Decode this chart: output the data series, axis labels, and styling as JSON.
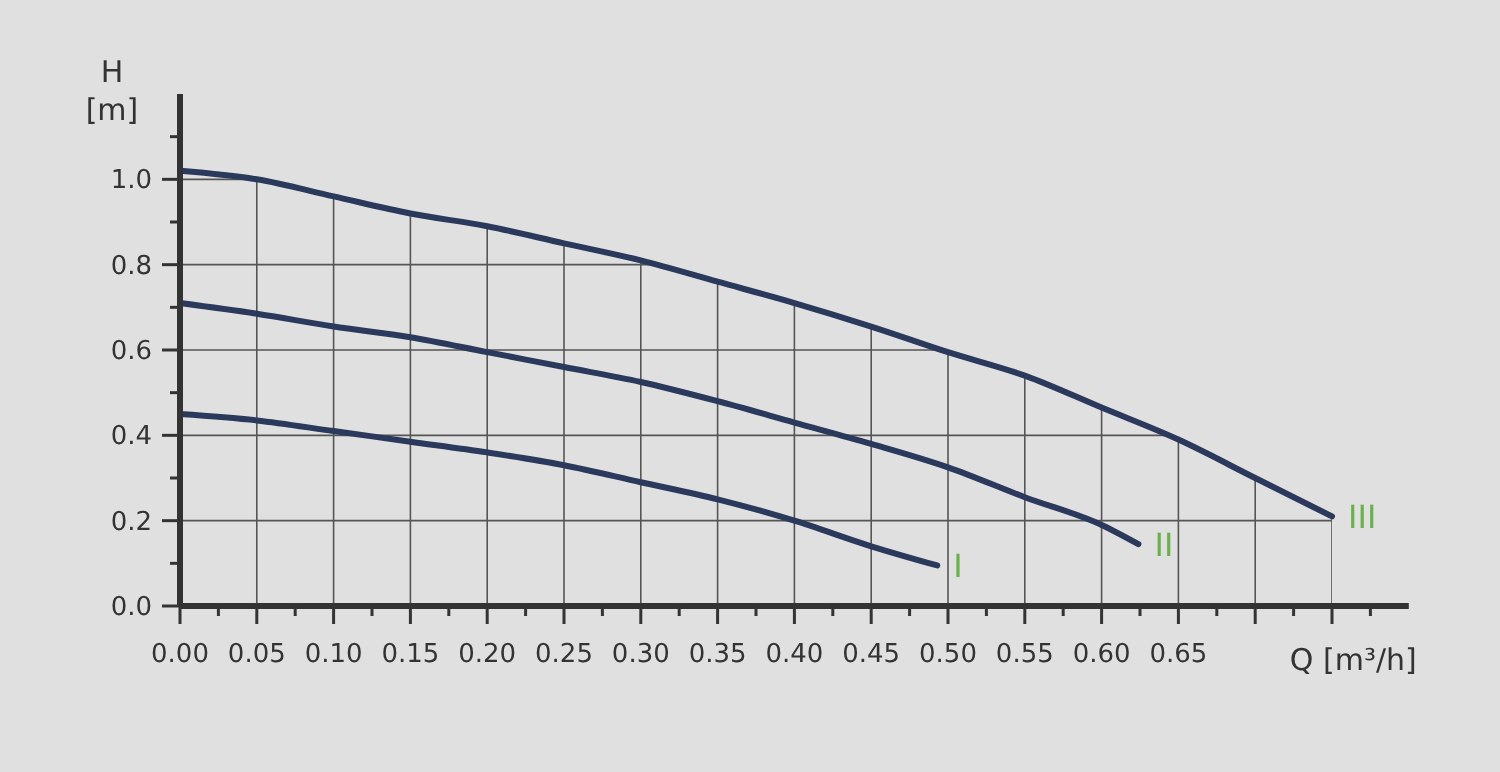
{
  "chart_data": {
    "type": "line",
    "xlabel": "Q [m³/h]",
    "ylabel": "H [m]",
    "xlim": [
      0,
      0.8
    ],
    "ylim": [
      0,
      1.2
    ],
    "xticks": [
      {
        "value": 0,
        "label": "0.00"
      },
      {
        "value": 0.025,
        "label": null
      },
      {
        "value": 0.05,
        "label": "0.05"
      },
      {
        "value": 0.075,
        "label": null
      },
      {
        "value": 0.1,
        "label": "0.10"
      },
      {
        "value": 0.125,
        "label": null
      },
      {
        "value": 0.15,
        "label": "0.15"
      },
      {
        "value": 0.175,
        "label": null
      },
      {
        "value": 0.2,
        "label": "0.20"
      },
      {
        "value": 0.225,
        "label": null
      },
      {
        "value": 0.25,
        "label": "0.25"
      },
      {
        "value": 0.275,
        "label": null
      },
      {
        "value": 0.3,
        "label": "0.30"
      },
      {
        "value": 0.325,
        "label": null
      },
      {
        "value": 0.35,
        "label": "0.35"
      },
      {
        "value": 0.375,
        "label": null
      },
      {
        "value": 0.4,
        "label": "0.40"
      },
      {
        "value": 0.425,
        "label": null
      },
      {
        "value": 0.45,
        "label": "0.45"
      },
      {
        "value": 0.475,
        "label": null
      },
      {
        "value": 0.5,
        "label": "0.50"
      },
      {
        "value": 0.525,
        "label": null
      },
      {
        "value": 0.55,
        "label": "0.55"
      },
      {
        "value": 0.575,
        "label": null
      },
      {
        "value": 0.6,
        "label": "0.60"
      },
      {
        "value": 0.625,
        "label": null
      },
      {
        "value": 0.65,
        "label": "0.65"
      },
      {
        "value": 0.675,
        "label": null
      },
      {
        "value": 0.7,
        "label": null
      },
      {
        "value": 0.725,
        "label": null
      },
      {
        "value": 0.75,
        "label": null
      },
      {
        "value": 0.775,
        "label": null
      }
    ],
    "yticks": [
      {
        "value": 0,
        "label": "0.0"
      },
      {
        "value": 0.1,
        "label": null
      },
      0.2,
      {
        "value": 0.3,
        "label": null
      },
      0.4,
      {
        "value": 0.5,
        "label": null
      },
      0.6,
      {
        "value": 0.7,
        "label": null
      },
      0.8,
      {
        "value": 0.9,
        "label": null
      },
      {
        "value": 1,
        "label": "1.0"
      },
      {
        "value": 1.1,
        "label": null
      }
    ],
    "grid": true,
    "marker": "none",
    "line_style": "solid",
    "series": [
      {
        "color": "#2b3a5c",
        "x": [
          0,
          0.05,
          0.1,
          0.15,
          0.2,
          0.25,
          0.3,
          0.35,
          0.4,
          0.45,
          0.493
        ],
        "values": [
          0.45,
          0.435,
          0.41,
          0.385,
          0.36,
          0.33,
          0.29,
          0.25,
          0.2,
          0.14,
          0.095
        ]
      },
      {
        "color": "#2b3a5c",
        "x": [
          0,
          0.05,
          0.1,
          0.15,
          0.2,
          0.25,
          0.3,
          0.35,
          0.4,
          0.45,
          0.5,
          0.55,
          0.6,
          0.624
        ],
        "values": [
          0.71,
          0.685,
          0.655,
          0.63,
          0.595,
          0.56,
          0.525,
          0.48,
          0.43,
          0.38,
          0.325,
          0.255,
          0.19,
          0.145
        ]
      },
      {
        "color": "#2b3a5c",
        "x": [
          0,
          0.05,
          0.1,
          0.15,
          0.2,
          0.25,
          0.3,
          0.35,
          0.4,
          0.45,
          0.5,
          0.55,
          0.6,
          0.65,
          0.7,
          0.75
        ],
        "values": [
          1.02,
          1.0,
          0.96,
          0.92,
          0.89,
          0.85,
          0.81,
          0.76,
          0.71,
          0.655,
          0.595,
          0.54,
          0.465,
          0.39,
          0.3,
          0.21
        ]
      }
    ],
    "annotations": [
      {
        "text": "I",
        "x": 0.493,
        "y": 0.095
      },
      {
        "text": "II",
        "x": 0.624,
        "y": 0.145
      },
      {
        "text": "III",
        "x": 0.75,
        "y": 0.21
      }
    ]
  }
}
